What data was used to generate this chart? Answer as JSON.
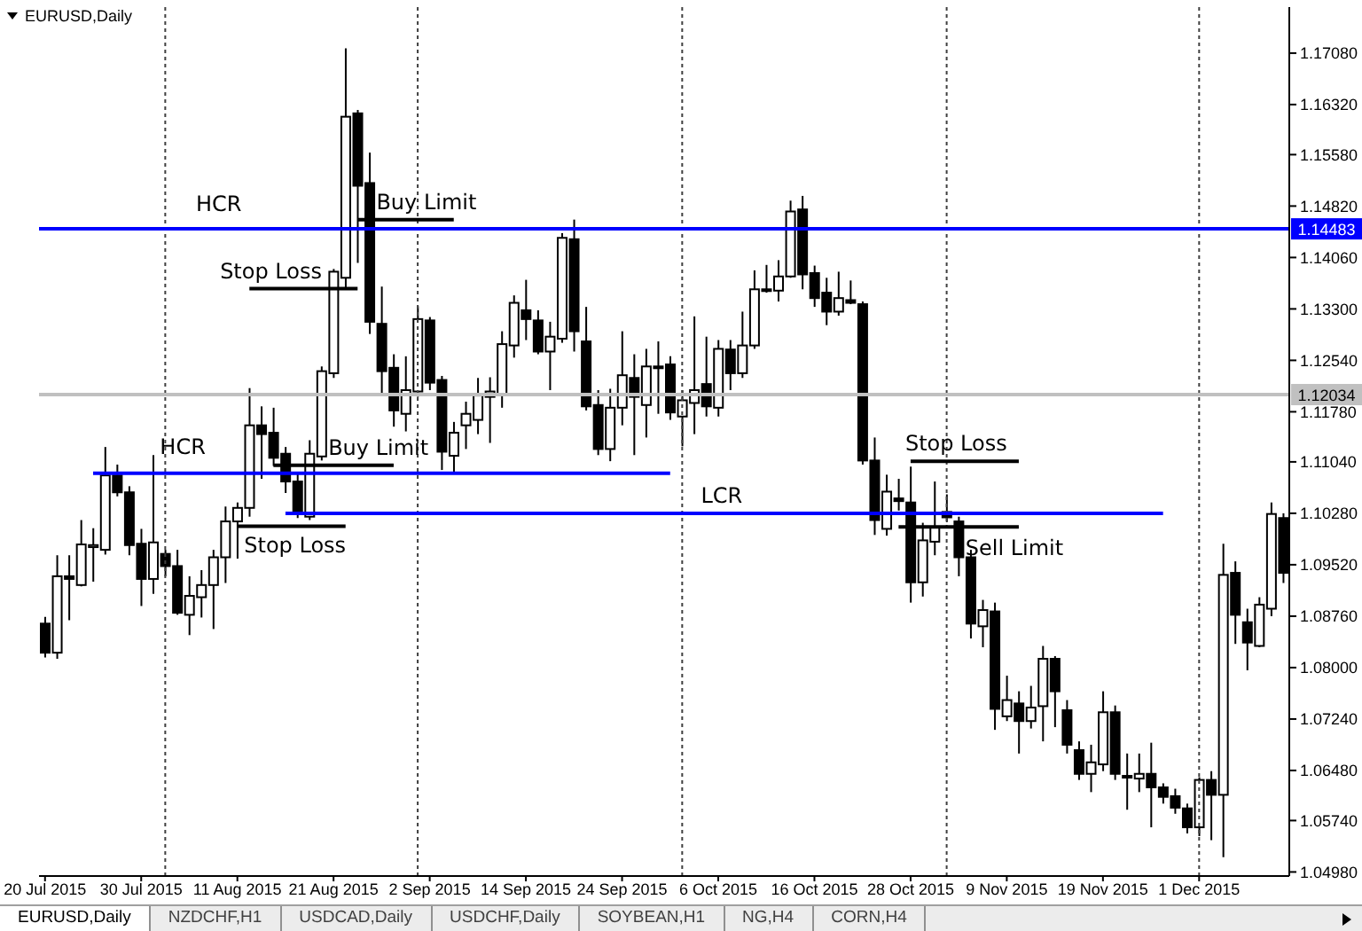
{
  "chart_data": {
    "type": "candlestick",
    "title": "EURUSD,Daily",
    "color": "#000000",
    "categories": [
      "20 Jul 2015",
      null,
      null,
      null,
      null,
      null,
      null,
      null,
      "30 Jul 2015",
      null,
      null,
      null,
      null,
      null,
      null,
      null,
      "11 Aug 2015",
      null,
      null,
      null,
      null,
      null,
      null,
      null,
      "21 Aug 2015",
      null,
      null,
      null,
      null,
      null,
      null,
      null,
      "2 Sep 2015",
      null,
      null,
      null,
      null,
      null,
      null,
      null,
      "14 Sep 2015",
      null,
      null,
      null,
      null,
      null,
      null,
      null,
      "24 Sep 2015",
      null,
      null,
      null,
      null,
      null,
      null,
      null,
      "6 Oct 2015",
      null,
      null,
      null,
      null,
      null,
      null,
      null,
      "16 Oct 2015",
      null,
      null,
      null,
      null,
      null,
      null,
      null,
      "28 Oct 2015",
      null,
      null,
      null,
      null,
      null,
      null,
      null,
      "9 Nov 2015",
      null,
      null,
      null,
      null,
      null,
      null,
      null,
      "19 Nov 2015",
      null,
      null,
      null,
      null,
      null,
      null,
      null,
      "1 Dec 2015",
      null,
      null,
      null,
      null,
      null,
      null,
      null
    ],
    "ohlc": [
      [
        1.0865,
        1.0875,
        1.0815,
        1.0822
      ],
      [
        1.0822,
        1.0966,
        1.0813,
        1.0935
      ],
      [
        1.0935,
        1.0966,
        1.087,
        1.0931
      ],
      [
        1.0922,
        1.1018,
        1.092,
        1.0982
      ],
      [
        1.0978,
        1.1006,
        1.0927,
        1.0981
      ],
      [
        1.0974,
        1.1126,
        1.0967,
        1.1084
      ],
      [
        1.1084,
        1.11,
        1.1053,
        1.1059
      ],
      [
        1.1059,
        1.1068,
        1.0966,
        1.0981
      ],
      [
        1.0983,
        1.1005,
        1.0891,
        1.0931
      ],
      [
        1.0931,
        1.1114,
        1.0909,
        1.0985
      ],
      [
        1.0968,
        1.0974,
        1.0935,
        1.095
      ],
      [
        1.095,
        1.0974,
        1.0878,
        1.0881
      ],
      [
        1.0878,
        1.0935,
        1.0848,
        1.0906
      ],
      [
        1.0904,
        1.0944,
        1.0874,
        1.0922
      ],
      [
        1.0922,
        1.0974,
        1.0857,
        1.0963
      ],
      [
        1.0963,
        1.1038,
        1.0925,
        1.1016
      ],
      [
        1.1016,
        1.1044,
        1.0961,
        1.1036
      ],
      [
        1.1036,
        1.1213,
        1.1023,
        1.1158
      ],
      [
        1.1158,
        1.1186,
        1.1079,
        1.1145
      ],
      [
        1.1147,
        1.1184,
        1.1098,
        1.111
      ],
      [
        1.1116,
        1.1126,
        1.1058,
        1.1075
      ],
      [
        1.1075,
        1.1088,
        1.1021,
        1.1027
      ],
      [
        1.1023,
        1.1136,
        1.1018,
        1.1116
      ],
      [
        1.1112,
        1.1245,
        1.1106,
        1.1238
      ],
      [
        1.1235,
        1.1389,
        1.1228,
        1.1385
      ],
      [
        1.1376,
        1.1715,
        1.1359,
        1.1614
      ],
      [
        1.1619,
        1.1624,
        1.1398,
        1.1512
      ],
      [
        1.1516,
        1.1561,
        1.1293,
        1.1311
      ],
      [
        1.1308,
        1.1363,
        1.1203,
        1.1238
      ],
      [
        1.1243,
        1.1263,
        1.1156,
        1.118
      ],
      [
        1.1175,
        1.126,
        1.1149,
        1.121
      ],
      [
        1.1208,
        1.1334,
        1.12,
        1.1315
      ],
      [
        1.1313,
        1.1318,
        1.121,
        1.1221
      ],
      [
        1.1225,
        1.1231,
        1.1092,
        1.1119
      ],
      [
        1.1113,
        1.1163,
        1.1088,
        1.1147
      ],
      [
        1.1158,
        1.1193,
        1.1123,
        1.1175
      ],
      [
        1.1166,
        1.1228,
        1.1145,
        1.1202
      ],
      [
        1.12,
        1.1229,
        1.1132,
        1.1208
      ],
      [
        1.1203,
        1.1297,
        1.1184,
        1.1278
      ],
      [
        1.1276,
        1.135,
        1.1258,
        1.1339
      ],
      [
        1.1328,
        1.1373,
        1.1284,
        1.1315
      ],
      [
        1.1313,
        1.1328,
        1.1263,
        1.1267
      ],
      [
        1.1267,
        1.1311,
        1.121,
        1.1289
      ],
      [
        1.1286,
        1.1442,
        1.128,
        1.1435
      ],
      [
        1.1433,
        1.1462,
        1.1267,
        1.1297
      ],
      [
        1.1282,
        1.1333,
        1.118,
        1.1186
      ],
      [
        1.1188,
        1.121,
        1.1114,
        1.1123
      ],
      [
        1.1123,
        1.1212,
        1.1105,
        1.1184
      ],
      [
        1.1184,
        1.1297,
        1.1158,
        1.1232
      ],
      [
        1.1228,
        1.1263,
        1.1114,
        1.12
      ],
      [
        1.1188,
        1.1271,
        1.114,
        1.1245
      ],
      [
        1.1243,
        1.1282,
        1.1175,
        1.1245
      ],
      [
        1.1248,
        1.126,
        1.1166,
        1.1177
      ],
      [
        1.1171,
        1.121,
        1.1127,
        1.1195
      ],
      [
        1.1191,
        1.1319,
        1.1145,
        1.121
      ],
      [
        1.1219,
        1.1289,
        1.1171,
        1.1186
      ],
      [
        1.1184,
        1.1284,
        1.1171,
        1.1271
      ],
      [
        1.127,
        1.1284,
        1.121,
        1.1235
      ],
      [
        1.1235,
        1.1326,
        1.1228,
        1.1276
      ],
      [
        1.1276,
        1.1387,
        1.1271,
        1.1359
      ],
      [
        1.1359,
        1.1395,
        1.1354,
        1.1357
      ],
      [
        1.1357,
        1.1402,
        1.1341,
        1.1378
      ],
      [
        1.1378,
        1.149,
        1.1376,
        1.1474
      ],
      [
        1.1477,
        1.1497,
        1.1359,
        1.1381
      ],
      [
        1.1383,
        1.1394,
        1.1333,
        1.1346
      ],
      [
        1.1354,
        1.1376,
        1.1306,
        1.1326
      ],
      [
        1.1326,
        1.1385,
        1.132,
        1.1346
      ],
      [
        1.1343,
        1.1372,
        1.1337,
        1.1339
      ],
      [
        1.1337,
        1.1341,
        1.11,
        1.1106
      ],
      [
        1.1106,
        1.114,
        1.0996,
        1.1018
      ],
      [
        1.1005,
        1.1085,
        1.0995,
        1.106
      ],
      [
        1.105,
        1.1079,
        1.1032,
        1.1046
      ],
      [
        1.1044,
        1.1097,
        1.0896,
        1.0926
      ],
      [
        1.0926,
        1.1014,
        1.0905,
        1.0988
      ],
      [
        1.0986,
        1.1075,
        1.0966,
        1.1007
      ],
      [
        1.103,
        1.1056,
        1.1015,
        1.1022
      ],
      [
        1.1016,
        1.1023,
        1.0935,
        1.0963
      ],
      [
        1.0963,
        1.0974,
        1.0843,
        1.0865
      ],
      [
        1.0861,
        1.09,
        1.083,
        1.0885
      ],
      [
        1.0883,
        1.0896,
        1.0708,
        1.0739
      ],
      [
        1.0728,
        1.0788,
        1.0721,
        1.0752
      ],
      [
        1.0747,
        1.0765,
        1.0673,
        1.0721
      ],
      [
        1.0721,
        1.0773,
        1.071,
        1.0741
      ],
      [
        1.0743,
        1.0832,
        1.0691,
        1.0813
      ],
      [
        1.0813,
        1.0817,
        1.0712,
        1.0765
      ],
      [
        1.0737,
        1.0752,
        1.0673,
        1.0686
      ],
      [
        1.0678,
        1.0691,
        1.0634,
        1.0643
      ],
      [
        1.0643,
        1.0686,
        1.0616,
        1.066
      ],
      [
        1.0657,
        1.0765,
        1.0647,
        1.0734
      ],
      [
        1.0734,
        1.0744,
        1.0634,
        1.0643
      ],
      [
        1.064,
        1.0673,
        1.059,
        1.0638
      ],
      [
        1.0636,
        1.0673,
        1.0616,
        1.0643
      ],
      [
        1.0643,
        1.0689,
        1.0564,
        1.0623
      ],
      [
        1.0623,
        1.0629,
        1.0599,
        1.0609
      ],
      [
        1.061,
        1.0621,
        1.0584,
        1.0593
      ],
      [
        1.0592,
        1.0599,
        1.0555,
        1.0564
      ],
      [
        1.0564,
        1.0638,
        1.0551,
        1.0634
      ],
      [
        1.0634,
        1.0647,
        1.0545,
        1.0612
      ],
      [
        1.0612,
        1.0983,
        1.052,
        1.0937
      ],
      [
        1.094,
        1.0957,
        1.0835,
        1.0878
      ],
      [
        1.0867,
        1.0887,
        1.0796,
        1.0837
      ],
      [
        1.0832,
        1.0904,
        1.083,
        1.0893
      ],
      [
        1.0887,
        1.1044,
        1.0876,
        1.1027
      ],
      [
        1.1021,
        1.1028,
        1.0925,
        1.094
      ]
    ],
    "ylim": [
      1.0492,
      1.1776
    ],
    "yticks": [
      {
        "value": 1.0498,
        "label": "1.04980"
      },
      {
        "value": 1.0574,
        "label": "1.05740"
      },
      {
        "value": 1.0648,
        "label": "1.06480"
      },
      {
        "value": 1.0724,
        "label": "1.07240"
      },
      {
        "value": 1.08,
        "label": "1.08000"
      },
      {
        "value": 1.0876,
        "label": "1.08760"
      },
      {
        "value": 1.0952,
        "label": "1.09520"
      },
      {
        "value": 1.1028,
        "label": "1.10280"
      },
      {
        "value": 1.1104,
        "label": "1.11040"
      },
      {
        "value": 1.1178,
        "label": "1.11780"
      },
      {
        "value": 1.1254,
        "label": "1.12540"
      },
      {
        "value": 1.133,
        "label": "1.13300"
      },
      {
        "value": 1.1406,
        "label": "1.14060"
      },
      {
        "value": 1.1482,
        "label": "1.14820"
      },
      {
        "value": 1.1558,
        "label": "1.15580"
      },
      {
        "value": 1.1632,
        "label": "1.16320"
      },
      {
        "value": 1.1708,
        "label": "1.17080"
      }
    ],
    "series": [
      {
        "type": "line",
        "color": "#0000ff",
        "values": [
          null,
          null,
          null,
          null,
          1.1087,
          1.1087,
          1.1087,
          1.1087,
          1.1087,
          1.1087,
          1.1087,
          1.1087,
          1.1087,
          1.1087,
          1.1087,
          1.1087,
          1.1087,
          1.1087,
          1.1087,
          1.1087,
          1.1087,
          1.1087,
          1.1087,
          1.1087,
          1.1087,
          1.1087,
          1.1087,
          1.1087,
          1.1087,
          1.1087,
          1.1087,
          1.1087,
          1.1087,
          1.1087,
          1.1087,
          1.1087,
          1.1087,
          1.1087,
          1.1087,
          1.1087,
          1.1087,
          1.1087,
          1.1087,
          1.1087,
          1.1087,
          1.1087,
          1.1087,
          1.1087,
          1.1087,
          1.1087,
          1.1087,
          1.1087,
          1.1087,
          null,
          null,
          null,
          null,
          null,
          null,
          null,
          null,
          null,
          null,
          null,
          null,
          null,
          null,
          null,
          null,
          null,
          null,
          null,
          null,
          null,
          null,
          null,
          null,
          null,
          null,
          null,
          null,
          null,
          null,
          null,
          null,
          null,
          null,
          null,
          null,
          null,
          null,
          null,
          null,
          null,
          null,
          null,
          null,
          null,
          null,
          null,
          null,
          null,
          null,
          null
        ]
      },
      {
        "type": "line",
        "color": "#0000ff",
        "values": [
          null,
          null,
          null,
          null,
          null,
          null,
          null,
          null,
          null,
          null,
          null,
          null,
          null,
          null,
          null,
          null,
          null,
          null,
          null,
          null,
          1.1028,
          1.1028,
          1.1028,
          1.1028,
          1.1028,
          1.1028,
          1.1028,
          1.1028,
          1.1028,
          1.1028,
          1.1028,
          1.1028,
          1.1028,
          1.1028,
          1.1028,
          1.1028,
          1.1028,
          1.1028,
          1.1028,
          1.1028,
          1.1028,
          1.1028,
          1.1028,
          1.1028,
          1.1028,
          1.1028,
          1.1028,
          1.1028,
          1.1028,
          1.1028,
          1.1028,
          1.1028,
          1.1028,
          1.1028,
          1.1028,
          1.1028,
          1.1028,
          1.1028,
          1.1028,
          1.1028,
          1.1028,
          1.1028,
          1.1028,
          1.1028,
          1.1028,
          1.1028,
          1.1028,
          1.1028,
          1.1028,
          1.1028,
          1.1028,
          1.1028,
          1.1028,
          1.1028,
          1.1028,
          1.1028,
          1.1028,
          1.1028,
          1.1028,
          1.1028,
          1.1028,
          1.1028,
          1.1028,
          1.1028,
          1.1028,
          1.1028,
          1.1028,
          1.1028,
          1.1028,
          1.1028,
          1.1028,
          1.1028,
          1.1028,
          1.1028,
          null,
          null,
          null,
          null,
          null,
          null,
          null,
          null,
          null,
          null
        ]
      },
      {
        "type": "line",
        "color": "#000000",
        "values": [
          null,
          null,
          null,
          null,
          null,
          null,
          null,
          null,
          null,
          null,
          null,
          null,
          null,
          null,
          null,
          null,
          null,
          null,
          null,
          null,
          null,
          null,
          null,
          null,
          null,
          null,
          1.1462,
          1.1462,
          1.1462,
          1.1462,
          1.1462,
          1.1462,
          1.1462,
          1.1462,
          1.1462,
          null,
          null,
          null,
          null,
          null,
          null,
          null,
          null,
          null,
          null,
          null,
          null,
          null,
          null,
          null,
          null,
          null,
          null,
          null,
          null,
          null,
          null,
          null,
          null,
          null,
          null,
          null,
          null,
          null,
          null,
          null,
          null,
          null,
          null,
          null,
          null,
          null,
          null,
          null,
          null,
          null,
          null,
          null,
          null,
          null,
          null,
          null,
          null,
          null,
          null,
          null,
          null,
          null,
          null,
          null,
          null,
          null,
          null,
          null,
          null,
          null,
          null,
          null,
          null,
          null,
          null,
          null,
          null,
          null
        ]
      },
      {
        "type": "line",
        "color": "#000000",
        "values": [
          null,
          null,
          null,
          null,
          null,
          null,
          null,
          null,
          null,
          null,
          null,
          null,
          null,
          null,
          null,
          null,
          null,
          1.136,
          1.136,
          1.136,
          1.136,
          1.136,
          1.136,
          1.136,
          1.136,
          1.136,
          1.136,
          null,
          null,
          null,
          null,
          null,
          null,
          null,
          null,
          null,
          null,
          null,
          null,
          null,
          null,
          null,
          null,
          null,
          null,
          null,
          null,
          null,
          null,
          null,
          null,
          null,
          null,
          null,
          null,
          null,
          null,
          null,
          null,
          null,
          null,
          null,
          null,
          null,
          null,
          null,
          null,
          null,
          null,
          null,
          null,
          null,
          null,
          null,
          null,
          null,
          null,
          null,
          null,
          null,
          null,
          null,
          null,
          null,
          null,
          null,
          null,
          null,
          null,
          null,
          null,
          null,
          null,
          null,
          null,
          null,
          null,
          null,
          null,
          null,
          null,
          null,
          null,
          null
        ]
      },
      {
        "type": "line",
        "color": "#000000",
        "values": [
          null,
          null,
          null,
          null,
          null,
          null,
          null,
          null,
          null,
          null,
          null,
          null,
          null,
          null,
          null,
          null,
          null,
          null,
          null,
          1.1099,
          1.1099,
          1.1099,
          1.1099,
          1.1099,
          1.1099,
          1.1099,
          1.1099,
          1.1099,
          1.1099,
          1.1099,
          null,
          null,
          null,
          null,
          null,
          null,
          null,
          null,
          null,
          null,
          null,
          null,
          null,
          null,
          null,
          null,
          null,
          null,
          null,
          null,
          null,
          null,
          null,
          null,
          null,
          null,
          null,
          null,
          null,
          null,
          null,
          null,
          null,
          null,
          null,
          null,
          null,
          null,
          null,
          null,
          null,
          null,
          null,
          null,
          null,
          null,
          null,
          null,
          null,
          null,
          null,
          null,
          null,
          null,
          null,
          null,
          null,
          null,
          null,
          null,
          null,
          null,
          null,
          null,
          null,
          null,
          null,
          null,
          null,
          null,
          null,
          null,
          null,
          null
        ]
      },
      {
        "type": "line",
        "color": "#000000",
        "values": [
          null,
          null,
          null,
          null,
          null,
          null,
          null,
          null,
          null,
          null,
          null,
          null,
          null,
          null,
          null,
          null,
          1.1009,
          1.1009,
          1.1009,
          1.1009,
          1.1009,
          1.1009,
          1.1009,
          1.1009,
          1.1009,
          1.1009,
          null,
          null,
          null,
          null,
          null,
          null,
          null,
          null,
          null,
          null,
          null,
          null,
          null,
          null,
          null,
          null,
          null,
          null,
          null,
          null,
          null,
          null,
          null,
          null,
          null,
          null,
          null,
          null,
          null,
          null,
          null,
          null,
          null,
          null,
          null,
          null,
          null,
          null,
          null,
          null,
          null,
          null,
          null,
          null,
          null,
          null,
          null,
          null,
          null,
          null,
          null,
          null,
          null,
          null,
          null,
          null,
          null,
          null,
          null,
          null,
          null,
          null,
          null,
          null,
          null,
          null,
          null,
          null,
          null,
          null,
          null,
          null,
          null,
          null,
          null,
          null,
          null,
          null
        ]
      },
      {
        "type": "line",
        "color": "#000000",
        "values": [
          null,
          null,
          null,
          null,
          null,
          null,
          null,
          null,
          null,
          null,
          null,
          null,
          null,
          null,
          null,
          null,
          null,
          null,
          null,
          null,
          null,
          null,
          null,
          null,
          null,
          null,
          null,
          null,
          null,
          null,
          null,
          null,
          null,
          null,
          null,
          null,
          null,
          null,
          null,
          null,
          null,
          null,
          null,
          null,
          null,
          null,
          null,
          null,
          null,
          null,
          null,
          null,
          null,
          null,
          null,
          null,
          null,
          null,
          null,
          null,
          null,
          null,
          null,
          null,
          null,
          null,
          null,
          null,
          null,
          null,
          null,
          null,
          1.1105,
          1.1105,
          1.1105,
          1.1105,
          1.1105,
          1.1105,
          1.1105,
          1.1105,
          1.1105,
          1.1105,
          null,
          null,
          null,
          null,
          null,
          null,
          null,
          null,
          null,
          null,
          null,
          null,
          null,
          null,
          null,
          null,
          null,
          null,
          null,
          null,
          null,
          null
        ]
      },
      {
        "type": "line",
        "color": "#000000",
        "values": [
          null,
          null,
          null,
          null,
          null,
          null,
          null,
          null,
          null,
          null,
          null,
          null,
          null,
          null,
          null,
          null,
          null,
          null,
          null,
          null,
          null,
          null,
          null,
          null,
          null,
          null,
          null,
          null,
          null,
          null,
          null,
          null,
          null,
          null,
          null,
          null,
          null,
          null,
          null,
          null,
          null,
          null,
          null,
          null,
          null,
          null,
          null,
          null,
          null,
          null,
          null,
          null,
          null,
          null,
          null,
          null,
          null,
          null,
          null,
          null,
          null,
          null,
          null,
          null,
          null,
          null,
          null,
          null,
          null,
          null,
          null,
          1.1008,
          1.1008,
          1.1008,
          1.1008,
          1.1008,
          1.1008,
          1.1008,
          1.1008,
          1.1008,
          1.1008,
          1.1008,
          null,
          null,
          null,
          null,
          null,
          null,
          null,
          null,
          null,
          null,
          null,
          null,
          null,
          null,
          null,
          null,
          null,
          null,
          null,
          null,
          null,
          null
        ]
      }
    ],
    "ref_lines": [
      {
        "axis": "y",
        "value": 1.14483,
        "label": "1.14483",
        "color": "#0000ff"
      },
      {
        "axis": "y",
        "value": 1.12034,
        "label": "1.12034",
        "color": "#c0c0c0"
      }
    ],
    "annotations": [
      {
        "text": "HCR",
        "y": 1.14483
      },
      {
        "text": "Buy Limit",
        "y": 1.1462
      },
      {
        "text": "Stop Loss",
        "y": 1.136
      },
      {
        "text": "HCR",
        "y": 1.1087
      },
      {
        "text": "Buy Limit",
        "y": 1.1099
      },
      {
        "text": "Stop Loss",
        "y": 1.1009
      },
      {
        "text": "LCR",
        "y": 1.1028
      },
      {
        "text": "Stop Loss",
        "y": 1.1105
      },
      {
        "text": "Sell Limit",
        "y": 1.1008
      },
      "EURUSD,Daily",
      "NZDCHF,H1",
      "USDCAD,Daily",
      "USDCHF,Daily",
      "SOYBEAN,H1",
      "NG,H4",
      "CORN,H4"
    ]
  }
}
